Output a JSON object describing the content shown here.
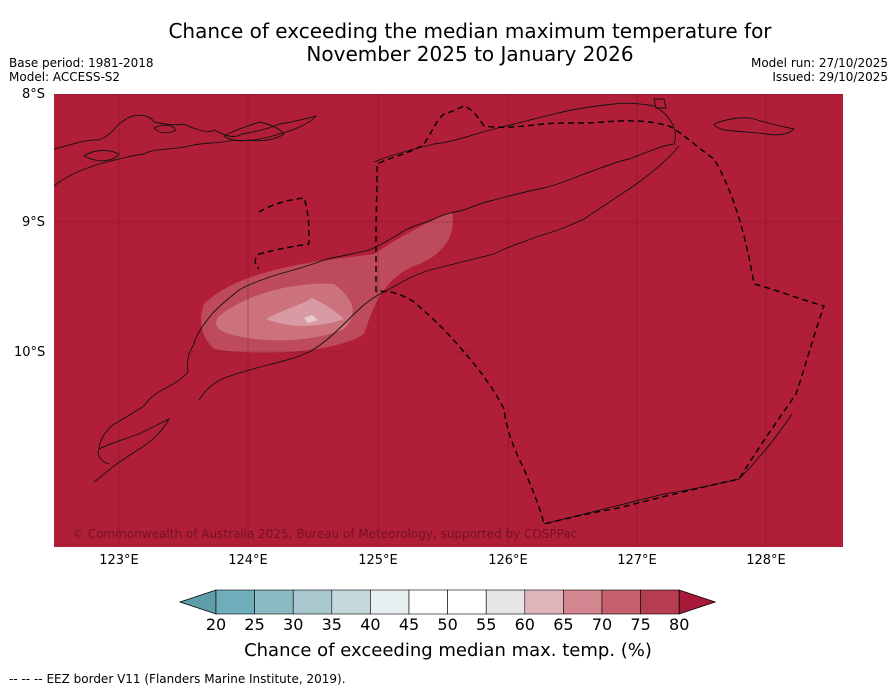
{
  "header": {
    "title_line1": "Chance of exceeding the median maximum temperature for",
    "title_line2": "November 2025 to January 2026",
    "base_period": "Base period: 1981-2018",
    "model": "Model: ACCESS-S2",
    "model_run": "Model run: 27/10/2025",
    "issued": "Issued: 29/10/2025"
  },
  "map": {
    "lat_labels": [
      "8°S",
      "9°S",
      "10°S"
    ],
    "lon_labels": [
      "123°E",
      "124°E",
      "125°E",
      "126°E",
      "127°E",
      "128°E"
    ],
    "copyright": "© Commonwealth of Australia 2025, Bureau of Meteorology, supported by COSPPac",
    "background_color": "#b11e38",
    "region": "Timor-Leste / Timor Island and EEZ",
    "legend_entries": [
      {
        "symbol": "dashed-line",
        "label": "EEZ border V11 (Flanders Marine Institute, 2019)."
      }
    ]
  },
  "colorbar": {
    "ticks": [
      "20",
      "25",
      "30",
      "35",
      "40",
      "45",
      "50",
      "55",
      "60",
      "65",
      "70",
      "75",
      "80"
    ],
    "colors": [
      "#5e9eab",
      "#6fadbb",
      "#8bbac3",
      "#a8c8cd",
      "#c7d8dc",
      "#e8eff1",
      "#ffffff",
      "#ffffff",
      "#e6e6e6",
      "#e0b5bc",
      "#d48690",
      "#c6606d",
      "#b63d4f",
      "#a8193a"
    ],
    "label": "Chance of exceeding median max. temp. (%)"
  },
  "footnote": {
    "prefix": "-- -- --",
    "text": "EEZ border V11 (Flanders Marine Institute, 2019)."
  }
}
